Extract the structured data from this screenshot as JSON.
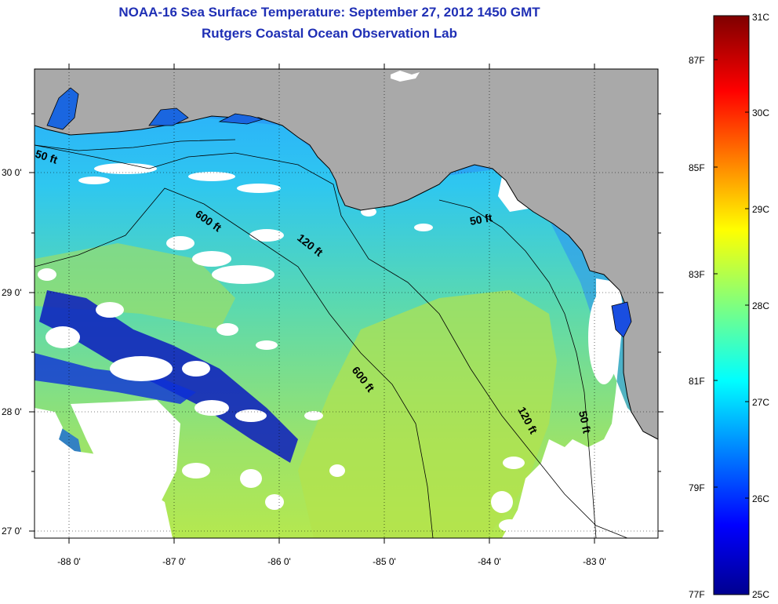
{
  "header": {
    "title": "NOAA-16 Sea Surface Temperature:  September 27, 2012 1450 GMT",
    "subtitle": "Rutgers Coastal Ocean Observation Lab"
  },
  "map": {
    "lon_ticks": [
      "-88 0'",
      "-87 0'",
      "-86 0'",
      "-85 0'",
      "-84 0'",
      "-83 0'"
    ],
    "lat_ticks": [
      "30 0'",
      "29 0'",
      "28 0'",
      "27 0'"
    ],
    "contours": {
      "c50_west": "50 ft",
      "c600_north": "600 ft",
      "c120_north": "120 ft",
      "c50_bigbend": "50 ft",
      "c600_south": "600 ft",
      "c120_south": "120 ft",
      "c50_south": "50 ft"
    },
    "colors": {
      "land": "#a9a9a9",
      "cloud": "#ffffff",
      "warm": "#a8e05a",
      "cool": "#1e90ff",
      "cold": "#000a8c"
    }
  },
  "colorbar": {
    "celsius": [
      "31C",
      "30C",
      "29C",
      "28C",
      "27C",
      "26C",
      "25C"
    ],
    "fahrenheit": [
      "87F",
      "85F",
      "83F",
      "81F",
      "79F",
      "77F"
    ]
  }
}
